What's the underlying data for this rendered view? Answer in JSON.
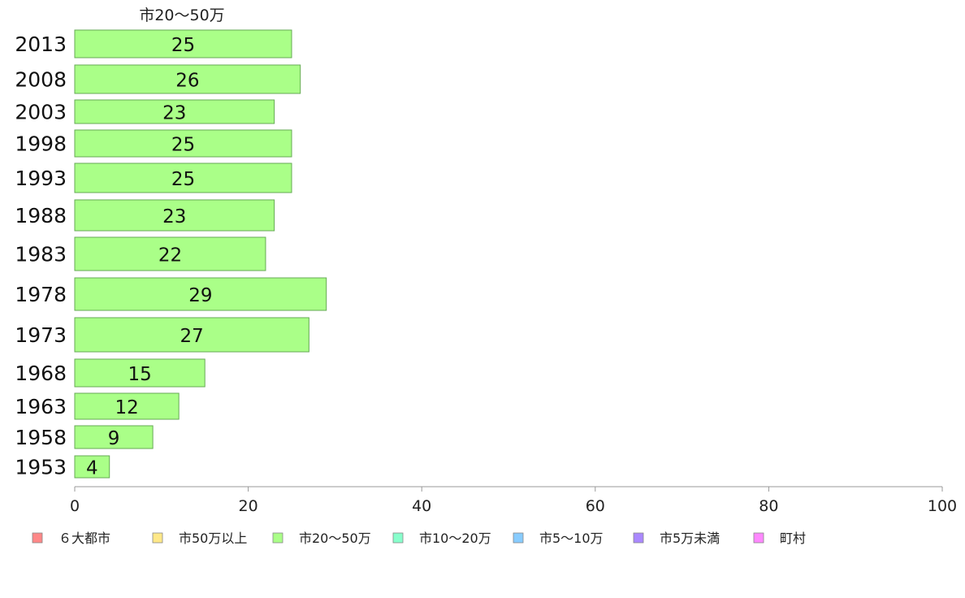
{
  "chart_data": {
    "type": "bar",
    "orientation": "horizontal",
    "title": "市20～50万",
    "categories": [
      "2013",
      "2008",
      "2003",
      "1998",
      "1993",
      "1988",
      "1983",
      "1978",
      "1973",
      "1968",
      "1963",
      "1958",
      "1953"
    ],
    "values": [
      25,
      26,
      23,
      25,
      25,
      23,
      22,
      29,
      27,
      15,
      12,
      9,
      4
    ],
    "xlim": [
      0,
      100
    ],
    "xticks": [
      0,
      20,
      40,
      60,
      80,
      100
    ],
    "bar_color": "#aaff88",
    "bar_stroke": "#66aa55",
    "grid": false,
    "legend": {
      "placement": "bottom",
      "entries": [
        {
          "label": "６大都市",
          "color": "#ff8888"
        },
        {
          "label": "市50万以上",
          "color": "#ffe888"
        },
        {
          "label": "市20～50万",
          "color": "#aaff88"
        },
        {
          "label": "市10～20万",
          "color": "#88ffcc"
        },
        {
          "label": "市5～10万",
          "color": "#88ccff"
        },
        {
          "label": "市5万未満",
          "color": "#aa88ff"
        },
        {
          "label": "町村",
          "color": "#ff88ff"
        }
      ]
    }
  }
}
